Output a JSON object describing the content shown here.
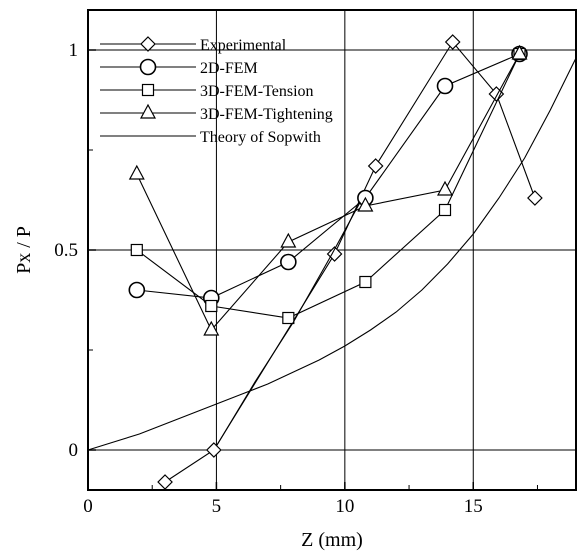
{
  "chart_data": {
    "type": "line",
    "xlabel": "Z  (mm)",
    "ylabel": "Px / P",
    "xlim": [
      0,
      19
    ],
    "ylim": [
      -0.1,
      1.1
    ],
    "x_ticks": [
      "0",
      "5",
      "10",
      "15"
    ],
    "y_ticks": [
      "0",
      "0.5",
      "1"
    ],
    "x_tick_values": [
      0,
      5,
      10,
      15
    ],
    "y_tick_values": [
      0,
      0.5,
      1
    ],
    "grid": "major",
    "legend_position": "top-left",
    "series": [
      {
        "name": "Experimental",
        "marker": "diamond",
        "x": [
          3.0,
          4.9,
          9.6,
          11.2,
          14.2,
          15.9,
          17.4
        ],
        "y": [
          -0.08,
          0.0,
          0.49,
          0.71,
          1.02,
          0.89,
          0.63
        ]
      },
      {
        "name": "2D-FEM",
        "marker": "circle",
        "x": [
          1.9,
          4.8,
          7.8,
          10.8,
          13.9,
          16.8
        ],
        "y": [
          0.4,
          0.38,
          0.47,
          0.63,
          0.91,
          0.99
        ]
      },
      {
        "name": "3D-FEM-Tension",
        "marker": "square",
        "x": [
          1.9,
          4.8,
          7.8,
          10.8,
          13.9,
          16.8
        ],
        "y": [
          0.5,
          0.36,
          0.33,
          0.42,
          0.6,
          0.99
        ]
      },
      {
        "name": "3D-FEM-Tightening",
        "marker": "triangle",
        "x": [
          1.9,
          4.8,
          7.8,
          10.8,
          13.9,
          16.8
        ],
        "y": [
          0.69,
          0.3,
          0.52,
          0.61,
          0.65,
          0.99
        ]
      },
      {
        "name": "Theory of Sopwith",
        "marker": "none",
        "x": [
          0,
          1,
          2,
          3,
          4,
          5,
          6,
          7,
          8,
          9,
          10,
          11,
          12,
          13,
          14,
          15,
          16,
          17,
          18,
          19
        ],
        "y": [
          0.0,
          0.02,
          0.04,
          0.065,
          0.09,
          0.115,
          0.14,
          0.165,
          0.195,
          0.225,
          0.26,
          0.3,
          0.345,
          0.4,
          0.465,
          0.54,
          0.63,
          0.73,
          0.85,
          0.98
        ]
      },
      {
        "name": "",
        "marker": "none",
        "x": [
          5.0,
          6.5,
          8.0,
          9.5,
          10.6
        ],
        "y": [
          0.01,
          0.17,
          0.32,
          0.49,
          0.62
        ]
      }
    ]
  }
}
